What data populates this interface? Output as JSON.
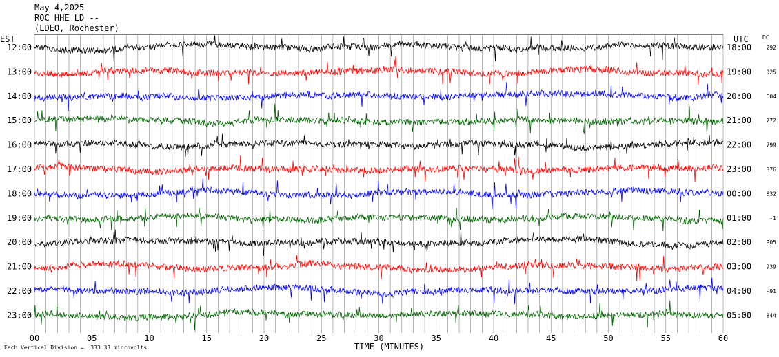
{
  "header": {
    "line1": "May 4,2025",
    "line2": "ROC HHE LD --",
    "line3": "(LDEO, Rochester)"
  },
  "left_tz": "EST",
  "right_tz": "UTC",
  "dc_header": "DC",
  "footer": "Each Vertical Division =  333.33 microvolts",
  "chart_data": {
    "type": "line",
    "xlabel": "TIME (MINUTES)",
    "xlim": [
      0,
      60
    ],
    "x_ticks": [
      "00",
      "05",
      "10",
      "15",
      "20",
      "25",
      "30",
      "35",
      "40",
      "45",
      "50",
      "55",
      "60"
    ],
    "grid": "vertical lines every minute",
    "trace_colors": [
      "#000000",
      "#ff0000",
      "#0000ff",
      "#006400"
    ],
    "rows": [
      {
        "est": "12:00",
        "utc": "18:00",
        "dc": "292"
      },
      {
        "est": "13:00",
        "utc": "19:00",
        "dc": "325"
      },
      {
        "est": "14:00",
        "utc": "20:00",
        "dc": "604"
      },
      {
        "est": "15:00",
        "utc": "21:00",
        "dc": "772"
      },
      {
        "est": "16:00",
        "utc": "22:00",
        "dc": "799"
      },
      {
        "est": "17:00",
        "utc": "23:00",
        "dc": "376"
      },
      {
        "est": "18:00",
        "utc": "00:00",
        "dc": "832"
      },
      {
        "est": "19:00",
        "utc": "01:00",
        "dc": "-1"
      },
      {
        "est": "20:00",
        "utc": "02:00",
        "dc": "905"
      },
      {
        "est": "21:00",
        "utc": "03:00",
        "dc": "939"
      },
      {
        "est": "22:00",
        "utc": "04:00",
        "dc": "-91"
      },
      {
        "est": "23:00",
        "utc": "05:00",
        "dc": "844"
      }
    ]
  }
}
